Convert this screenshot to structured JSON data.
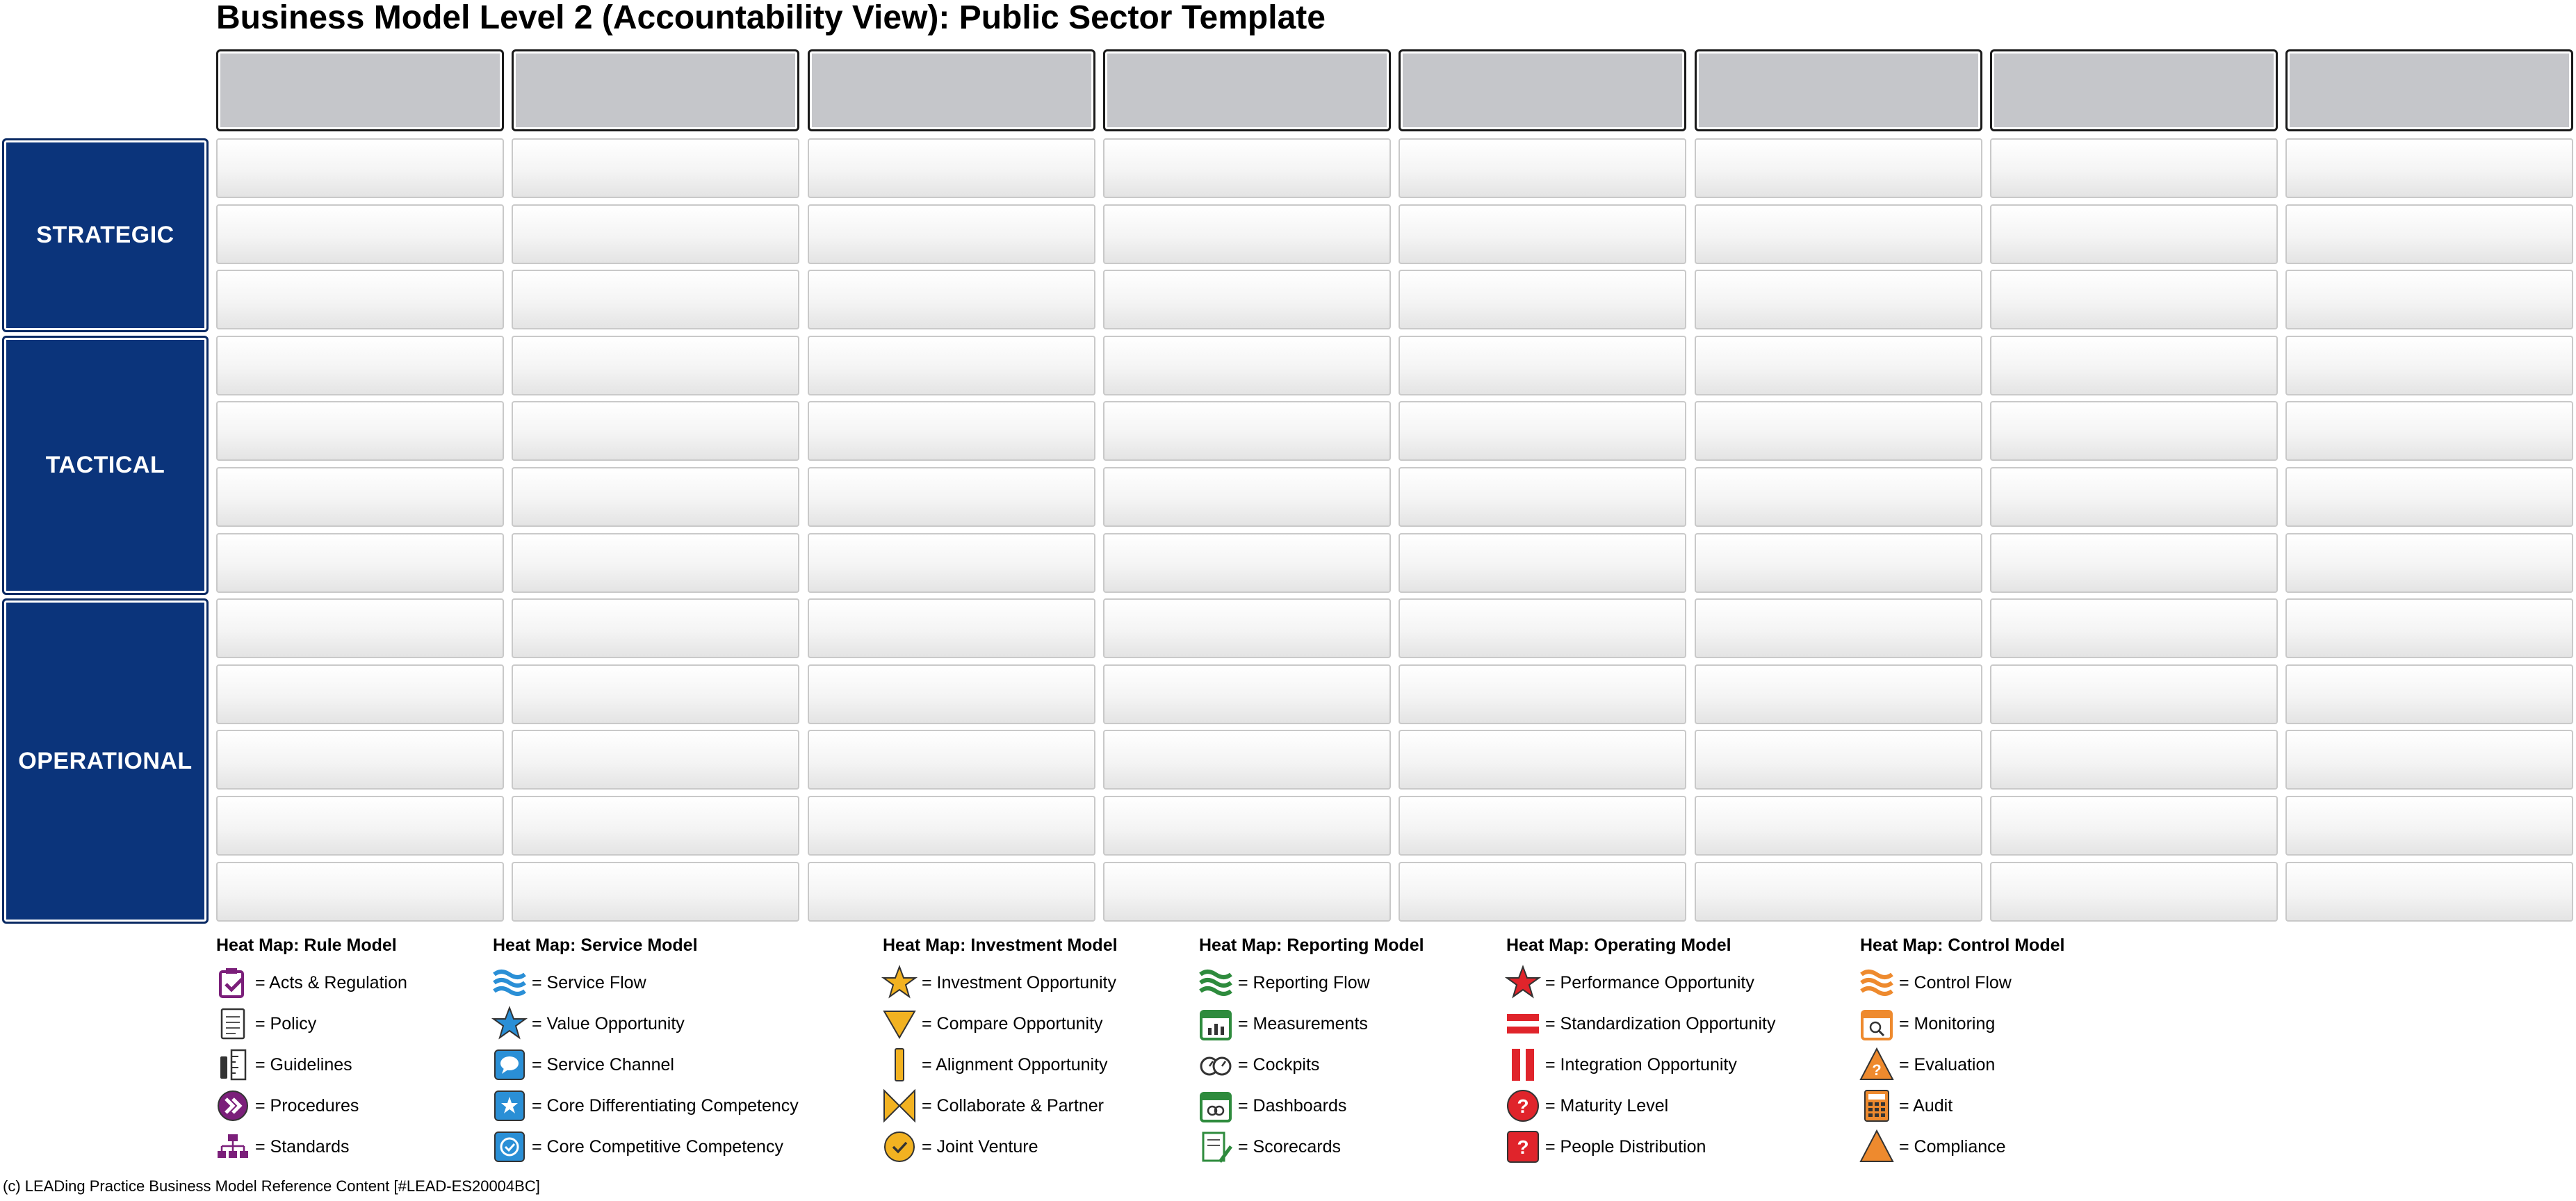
{
  "title": "Business Model Level 2 (Accountability View): Public Sector Template",
  "bands": [
    {
      "label": "STRATEGIC",
      "rows": 3
    },
    {
      "label": "TACTICAL",
      "rows": 4
    },
    {
      "label": "OPERATIONAL",
      "rows": 5
    }
  ],
  "column_count": 8,
  "legends": [
    {
      "title": "Heat Map: Rule Model",
      "items": [
        {
          "icon": "acts-regulation-icon",
          "text": "= Acts & Regulation"
        },
        {
          "icon": "policy-icon",
          "text": "= Policy"
        },
        {
          "icon": "guidelines-icon",
          "text": "= Guidelines"
        },
        {
          "icon": "procedures-icon",
          "text": "= Procedures"
        },
        {
          "icon": "standards-icon",
          "text": "= Standards"
        }
      ]
    },
    {
      "title": "Heat Map: Service Model",
      "items": [
        {
          "icon": "service-flow-icon",
          "text": "= Service Flow"
        },
        {
          "icon": "value-opportunity-icon",
          "text": "= Value Opportunity"
        },
        {
          "icon": "service-channel-icon",
          "text": "= Service Channel"
        },
        {
          "icon": "core-differentiating-competency-icon",
          "text": "= Core Differentiating Competency"
        },
        {
          "icon": "core-competitive-competency-icon",
          "text": "= Core Competitive Competency"
        }
      ]
    },
    {
      "title": "Heat Map: Investment Model",
      "items": [
        {
          "icon": "investment-opportunity-icon",
          "text": "= Investment Opportunity"
        },
        {
          "icon": "compare-opportunity-icon",
          "text": "= Compare Opportunity"
        },
        {
          "icon": "alignment-opportunity-icon",
          "text": "= Alignment Opportunity"
        },
        {
          "icon": "collaborate-partner-icon",
          "text": "= Collaborate & Partner"
        },
        {
          "icon": "joint-venture-icon",
          "text": "= Joint Venture"
        }
      ]
    },
    {
      "title": "Heat Map: Reporting Model",
      "items": [
        {
          "icon": "reporting-flow-icon",
          "text": "= Reporting Flow"
        },
        {
          "icon": "measurements-icon",
          "text": "= Measurements"
        },
        {
          "icon": "cockpits-icon",
          "text": "= Cockpits"
        },
        {
          "icon": "dashboards-icon",
          "text": "= Dashboards"
        },
        {
          "icon": "scorecards-icon",
          "text": "= Scorecards"
        }
      ]
    },
    {
      "title": "Heat Map: Operating Model",
      "items": [
        {
          "icon": "performance-opportunity-icon",
          "text": "= Performance Opportunity"
        },
        {
          "icon": "standardization-opportunity-icon",
          "text": "= Standardization Opportunity"
        },
        {
          "icon": "integration-opportunity-icon",
          "text": "= Integration Opportunity"
        },
        {
          "icon": "maturity-level-icon",
          "text": "= Maturity Level"
        },
        {
          "icon": "people-distribution-icon",
          "text": "= People Distribution"
        }
      ]
    },
    {
      "title": "Heat Map: Control Model",
      "items": [
        {
          "icon": "control-flow-icon",
          "text": "= Control Flow"
        },
        {
          "icon": "monitoring-icon",
          "text": "= Monitoring"
        },
        {
          "icon": "evaluation-icon",
          "text": "= Evaluation"
        },
        {
          "icon": "audit-icon",
          "text": "= Audit"
        },
        {
          "icon": "compliance-icon",
          "text": "= Compliance"
        }
      ]
    }
  ],
  "colors": {
    "band_blue": "#0b347b",
    "header_grey": "#c5c6ca",
    "rule_purple": "#7b1f7a",
    "service_blue": "#2a8fd6",
    "investment_gold": "#f2b221",
    "reporting_green": "#2e8b3d",
    "operating_red": "#e0242b",
    "control_orange": "#ee8a2e"
  },
  "footer": "(c) LEADing Practice Business Model Reference Content [#LEAD-ES20004BC]"
}
